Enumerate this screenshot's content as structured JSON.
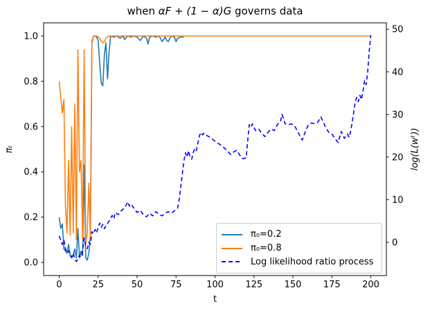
{
  "figure": {
    "title_prefix": "when ",
    "title_math": "αF + (1 − α)G",
    "title_suffix": " governs data",
    "background": "#ffffff"
  },
  "chart_data": {
    "type": "line",
    "title": "when αF + (1 − α)G governs data",
    "xlabel": "t",
    "ylabel_left": "πₜ",
    "ylabel_right": "log(L(wᵗ))",
    "grid": false,
    "legend_position": "lower right inside plot",
    "axes": {
      "xlim": [
        -10,
        210
      ],
      "ylim_left": [
        -0.058,
        1.058
      ],
      "ylim_right": [
        -7.8,
        51.5
      ],
      "x_ticks": [
        0,
        25,
        50,
        75,
        100,
        125,
        150,
        175,
        200
      ],
      "y_left_ticks": [
        "0.0",
        "0.2",
        "0.4",
        "0.6",
        "0.8",
        "1.0"
      ],
      "y_right_ticks": [
        "0",
        "10",
        "20",
        "30",
        "40",
        "50"
      ],
      "spine_color": "#000000",
      "legend_border_color": "#cccccc"
    },
    "series": [
      {
        "name": "π₀=0.2",
        "color": "#1f77b4",
        "style": "solid",
        "axis": "left",
        "points": [
          [
            0,
            0.2
          ],
          [
            1,
            0.15
          ],
          [
            2,
            0.17
          ],
          [
            3,
            0.06
          ],
          [
            4,
            0.05
          ],
          [
            5,
            0.04
          ],
          [
            6,
            0.08
          ],
          [
            7,
            0.03
          ],
          [
            8,
            0.02
          ],
          [
            9,
            0.03
          ],
          [
            10,
            0.06
          ],
          [
            11,
            0.02
          ],
          [
            12,
            0.15
          ],
          [
            13,
            0.02
          ],
          [
            14,
            0.05
          ],
          [
            15,
            0.03
          ],
          [
            16,
            0.43
          ],
          [
            17,
            0.02
          ],
          [
            18,
            0.01
          ],
          [
            19,
            0.04
          ],
          [
            20,
            0.12
          ],
          [
            21,
            0.97
          ],
          [
            22,
            1.0
          ],
          [
            23,
            1.0
          ],
          [
            24,
            0.995
          ],
          [
            25,
            0.98
          ],
          [
            26,
            0.88
          ],
          [
            27,
            0.79
          ],
          [
            28,
            0.78
          ],
          [
            29,
            0.92
          ],
          [
            30,
            0.97
          ],
          [
            31,
            0.81
          ],
          [
            32,
            0.93
          ],
          [
            33,
            1.0
          ],
          [
            35,
            0.995
          ],
          [
            37,
            1.0
          ],
          [
            39,
            0.99
          ],
          [
            41,
            1.0
          ],
          [
            42,
            0.985
          ],
          [
            44,
            1.0
          ],
          [
            46,
            0.995
          ],
          [
            48,
            1.0
          ],
          [
            50,
            0.995
          ],
          [
            52,
            0.98
          ],
          [
            54,
            1.0
          ],
          [
            56,
            0.99
          ],
          [
            57,
            0.965
          ],
          [
            58,
            0.995
          ],
          [
            60,
            1.0
          ],
          [
            62,
            0.995
          ],
          [
            64,
            1.0
          ],
          [
            65,
            0.99
          ],
          [
            66,
            0.975
          ],
          [
            67,
            0.985
          ],
          [
            68,
            0.995
          ],
          [
            69,
            0.98
          ],
          [
            70,
            0.975
          ],
          [
            71,
            0.99
          ],
          [
            72,
            1.0
          ],
          [
            74,
            0.995
          ],
          [
            75,
            0.975
          ],
          [
            76,
            0.99
          ],
          [
            78,
            0.995
          ],
          [
            80,
            0.995
          ]
        ]
      },
      {
        "name": "π₀=0.8",
        "color": "#ff7f0e",
        "style": "solid",
        "axis": "left",
        "points": [
          [
            0,
            0.8
          ],
          [
            1,
            0.73
          ],
          [
            2,
            0.66
          ],
          [
            3,
            0.72
          ],
          [
            4,
            0.25
          ],
          [
            5,
            0.13
          ],
          [
            6,
            0.45
          ],
          [
            7,
            0.12
          ],
          [
            8,
            0.6
          ],
          [
            9,
            0.13
          ],
          [
            10,
            0.7
          ],
          [
            11,
            0.1
          ],
          [
            12,
            0.94
          ],
          [
            13,
            0.4
          ],
          [
            14,
            0.45
          ],
          [
            15,
            0.1
          ],
          [
            16,
            0.94
          ],
          [
            17,
            0.08
          ],
          [
            18,
            0.13
          ],
          [
            19,
            0.35
          ],
          [
            20,
            0.1
          ],
          [
            21,
            0.98
          ],
          [
            22,
            1.0
          ],
          [
            24,
            1.0
          ],
          [
            26,
            0.99
          ],
          [
            27,
            0.975
          ],
          [
            28,
            0.97
          ],
          [
            29,
            0.975
          ],
          [
            30,
            0.99
          ],
          [
            32,
            1.0
          ],
          [
            60,
            1.0
          ],
          [
            100,
            1.0
          ],
          [
            150,
            1.0
          ],
          [
            200,
            1.0
          ]
        ]
      },
      {
        "name": "Log likelihood ratio process",
        "color": "#0000ff",
        "style": "dashed",
        "axis": "right",
        "points": [
          [
            0,
            1.5
          ],
          [
            1,
            0.5
          ],
          [
            2,
            -0.5
          ],
          [
            3,
            0.5
          ],
          [
            4,
            -1.5
          ],
          [
            5,
            -2.5
          ],
          [
            6,
            -2
          ],
          [
            7,
            -3
          ],
          [
            8,
            -3.5
          ],
          [
            9,
            -2.5
          ],
          [
            10,
            -4
          ],
          [
            11,
            -4.5
          ],
          [
            12,
            -4
          ],
          [
            13,
            -3
          ],
          [
            14,
            -3.5
          ],
          [
            15,
            -2
          ],
          [
            16,
            1
          ],
          [
            17,
            -1
          ],
          [
            18,
            -1.5
          ],
          [
            19,
            0
          ],
          [
            20,
            -0.5
          ],
          [
            21,
            2.5
          ],
          [
            22,
            2
          ],
          [
            23,
            3
          ],
          [
            24,
            2.2
          ],
          [
            25,
            3.5
          ],
          [
            26,
            4.5
          ],
          [
            27,
            3.5
          ],
          [
            28,
            4.2
          ],
          [
            29,
            3.2
          ],
          [
            30,
            3.8
          ],
          [
            32,
            5
          ],
          [
            34,
            6.3
          ],
          [
            35,
            5.5
          ],
          [
            36,
            7
          ],
          [
            38,
            6.5
          ],
          [
            40,
            7.5
          ],
          [
            42,
            8
          ],
          [
            44,
            9.5
          ],
          [
            45,
            8.5
          ],
          [
            46,
            9
          ],
          [
            48,
            8
          ],
          [
            50,
            7
          ],
          [
            52,
            7.5
          ],
          [
            54,
            6.5
          ],
          [
            56,
            6
          ],
          [
            58,
            6.8
          ],
          [
            60,
            6.2
          ],
          [
            62,
            7.2
          ],
          [
            64,
            6.6
          ],
          [
            66,
            6.2
          ],
          [
            68,
            6.8
          ],
          [
            70,
            7.2
          ],
          [
            72,
            6.8
          ],
          [
            74,
            7.4
          ],
          [
            76,
            8
          ],
          [
            77,
            10
          ],
          [
            78,
            13
          ],
          [
            79,
            16
          ],
          [
            80,
            19
          ],
          [
            81,
            21
          ],
          [
            82,
            20
          ],
          [
            83,
            21.5
          ],
          [
            84,
            20
          ],
          [
            85,
            19.5
          ],
          [
            86,
            21
          ],
          [
            87,
            22
          ],
          [
            88,
            21.5
          ],
          [
            90,
            25
          ],
          [
            91,
            25.8
          ],
          [
            92,
            25.2
          ],
          [
            93,
            25.6
          ],
          [
            95,
            25
          ],
          [
            97,
            24.6
          ],
          [
            99,
            24
          ],
          [
            101,
            23.4
          ],
          [
            103,
            23
          ],
          [
            105,
            22.4
          ],
          [
            107,
            21.8
          ],
          [
            109,
            21
          ],
          [
            110,
            20.6
          ],
          [
            112,
            21.2
          ],
          [
            114,
            21.6
          ],
          [
            116,
            20.4
          ],
          [
            118,
            19.6
          ],
          [
            120,
            19.8
          ],
          [
            121,
            24
          ],
          [
            122,
            27.6
          ],
          [
            123,
            27
          ],
          [
            124,
            27.8
          ],
          [
            126,
            26.2
          ],
          [
            128,
            26.6
          ],
          [
            130,
            25.6
          ],
          [
            132,
            24.8
          ],
          [
            134,
            25.8
          ],
          [
            136,
            26.6
          ],
          [
            138,
            26.2
          ],
          [
            140,
            27.6
          ],
          [
            142,
            28.4
          ],
          [
            143,
            30
          ],
          [
            144,
            29
          ],
          [
            145,
            27.8
          ],
          [
            147,
            27.6
          ],
          [
            149,
            27.8
          ],
          [
            151,
            27.4
          ],
          [
            153,
            26
          ],
          [
            155,
            24.6
          ],
          [
            156,
            24
          ],
          [
            158,
            26
          ],
          [
            160,
            27.6
          ],
          [
            162,
            28
          ],
          [
            164,
            27.8
          ],
          [
            166,
            28.2
          ],
          [
            168,
            29.4
          ],
          [
            169,
            28.6
          ],
          [
            171,
            27
          ],
          [
            173,
            25.8
          ],
          [
            175,
            25.4
          ],
          [
            177,
            24.4
          ],
          [
            179,
            23.4
          ],
          [
            181,
            26
          ],
          [
            183,
            24.4
          ],
          [
            185,
            25.4
          ],
          [
            186,
            24.6
          ],
          [
            187,
            26
          ],
          [
            188,
            28
          ],
          [
            189,
            30.5
          ],
          [
            190,
            33
          ],
          [
            191,
            34
          ],
          [
            192,
            33
          ],
          [
            193,
            34.5
          ],
          [
            194,
            33.5
          ],
          [
            195,
            35.5
          ],
          [
            196,
            38
          ],
          [
            197,
            37
          ],
          [
            198,
            40
          ],
          [
            199,
            45
          ],
          [
            200,
            48.6
          ]
        ]
      }
    ]
  }
}
